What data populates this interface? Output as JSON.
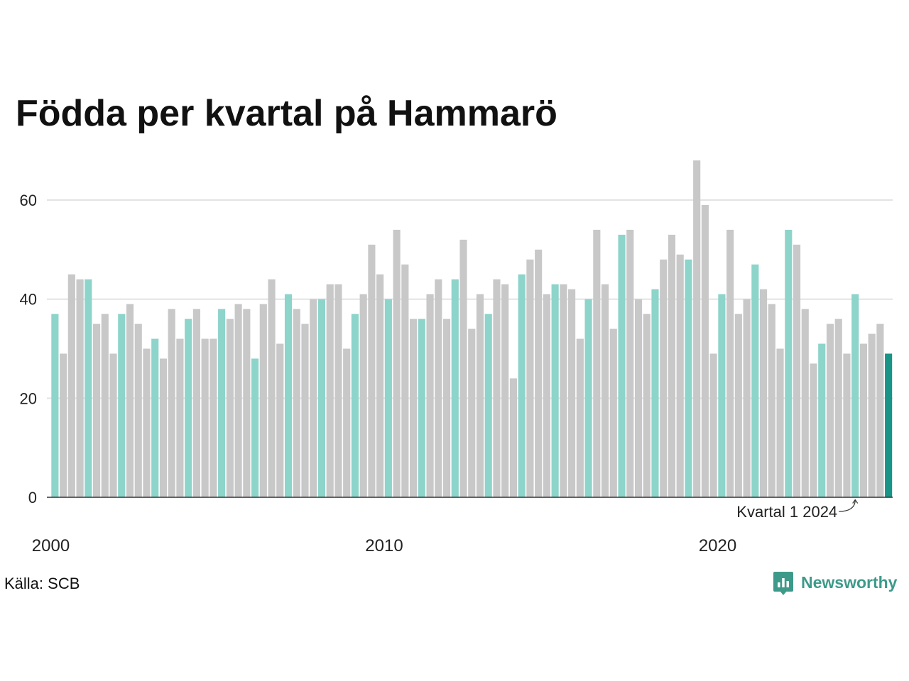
{
  "chart_data": {
    "type": "bar",
    "title": "Födda per kvartal på Hammarö",
    "xlim": [
      2000,
      2025.25
    ],
    "ylim": [
      0,
      70
    ],
    "x_ticks": [
      2000,
      2010,
      2020
    ],
    "y_ticks": [
      0,
      20,
      40,
      60
    ],
    "grid": true,
    "legend": "none",
    "x": [
      2000,
      2000.25,
      2000.5,
      2000.75,
      2001,
      2001.25,
      2001.5,
      2001.75,
      2002,
      2002.25,
      2002.5,
      2002.75,
      2003,
      2003.25,
      2003.5,
      2003.75,
      2004,
      2004.25,
      2004.5,
      2004.75,
      2005,
      2005.25,
      2005.5,
      2005.75,
      2006,
      2006.25,
      2006.5,
      2006.75,
      2007,
      2007.25,
      2007.5,
      2007.75,
      2008,
      2008.25,
      2008.5,
      2008.75,
      2009,
      2009.25,
      2009.5,
      2009.75,
      2010,
      2010.25,
      2010.5,
      2010.75,
      2011,
      2011.25,
      2011.5,
      2011.75,
      2012,
      2012.25,
      2012.5,
      2012.75,
      2013,
      2013.25,
      2013.5,
      2013.75,
      2014,
      2014.25,
      2014.5,
      2014.75,
      2015,
      2015.25,
      2015.5,
      2015.75,
      2016,
      2016.25,
      2016.5,
      2016.75,
      2017,
      2017.25,
      2017.5,
      2017.75,
      2018,
      2018.25,
      2018.5,
      2018.75,
      2019,
      2019.25,
      2019.5,
      2019.75,
      2020,
      2020.25,
      2020.5,
      2020.75,
      2021,
      2021.25,
      2021.5,
      2021.75,
      2022,
      2022.25,
      2022.5,
      2022.75,
      2023,
      2023.25,
      2023.5,
      2023.75,
      2024,
      2024.25,
      2024.5,
      2024.75,
      2025
    ],
    "values": [
      37,
      29,
      45,
      44,
      44,
      35,
      37,
      29,
      37,
      39,
      35,
      30,
      32,
      28,
      38,
      32,
      36,
      38,
      32,
      32,
      38,
      36,
      39,
      38,
      28,
      39,
      44,
      31,
      41,
      38,
      35,
      40,
      40,
      43,
      43,
      30,
      37,
      41,
      51,
      45,
      40,
      54,
      47,
      36,
      36,
      41,
      44,
      36,
      44,
      52,
      34,
      41,
      37,
      44,
      43,
      24,
      45,
      48,
      50,
      41,
      43,
      43,
      42,
      32,
      40,
      54,
      43,
      34,
      53,
      54,
      40,
      37,
      42,
      48,
      53,
      49,
      48,
      68,
      59,
      29,
      41,
      54,
      37,
      40,
      47,
      42,
      39,
      30,
      54,
      51,
      38,
      27,
      31,
      35,
      36,
      29,
      41,
      31,
      33,
      35,
      29
    ],
    "annotation": {
      "text": "Kvartal 1 2024",
      "x": 2024
    },
    "colors": {
      "first_quarter": "#8dd4cb",
      "other_quarters": "#c8c8c8",
      "latest": "#1a9486",
      "grid": "#e3e3e3",
      "axis": "#333333"
    }
  },
  "source": "Källa: SCB",
  "logo": {
    "text": "Newsworthy",
    "icon": "newsworthy-chart-bubble-icon",
    "color": "#3d9a8a"
  }
}
